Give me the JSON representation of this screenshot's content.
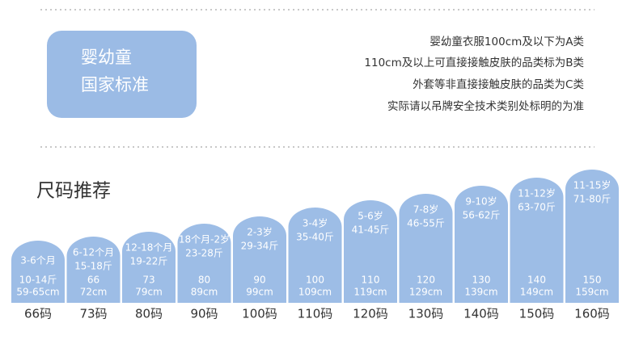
{
  "badge": {
    "lines": [
      "婴幼童",
      "国家标准"
    ]
  },
  "notes": [
    "婴幼童衣服100cm及以下为A类",
    "110cm及以上可直接接触皮肤的品类标为B类",
    "外套等非直接接触皮肤的品类为C类",
    "实际请以吊牌安全技术类别处标明的为准"
  ],
  "section_title": "尺码推荐",
  "columns": [
    {
      "upper": [
        "3-6个月"
      ],
      "lower": [
        "10-14斤",
        "59-65cm"
      ],
      "size": "66码"
    },
    {
      "upper": [
        "6-12个月",
        "15-18斤"
      ],
      "lower": [
        "66",
        "72cm"
      ],
      "size": "73码"
    },
    {
      "upper": [
        "12-18个月",
        "19-22斤"
      ],
      "lower": [
        "73",
        "79cm"
      ],
      "size": "80码"
    },
    {
      "upper": [
        "18个月-2岁",
        "23-28斤"
      ],
      "lower": [
        "80",
        "89cm"
      ],
      "size": "90码"
    },
    {
      "upper": [
        "2-3岁",
        "29-34斤"
      ],
      "lower": [
        "90",
        "99cm"
      ],
      "size": "100码"
    },
    {
      "upper": [
        "3-4岁",
        "35-40斤"
      ],
      "lower": [
        "100",
        "109cm"
      ],
      "size": "110码"
    },
    {
      "upper": [
        "5-6岁",
        "41-45斤"
      ],
      "lower": [
        "110",
        "119cm"
      ],
      "size": "120码"
    },
    {
      "upper": [
        "7-8岁",
        "46-55斤"
      ],
      "lower": [
        "120",
        "129cm"
      ],
      "size": "130码"
    },
    {
      "upper": [
        "9-10岁",
        "56-62斤"
      ],
      "lower": [
        "130",
        "139cm"
      ],
      "size": "140码"
    },
    {
      "upper": [
        "11-12岁",
        "63-70斤"
      ],
      "lower": [
        "140",
        "149cm"
      ],
      "size": "150码"
    },
    {
      "upper": [
        "11-15岁",
        "71-80斤"
      ],
      "lower": [
        "150",
        "159cm"
      ],
      "size": "160码"
    }
  ]
}
